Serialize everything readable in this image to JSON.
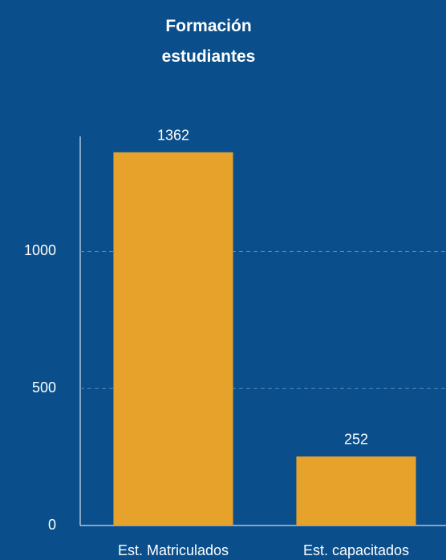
{
  "chart_data": {
    "type": "bar",
    "title": "Formación estudiantes",
    "categories": [
      "Est. Matriculados",
      "Est. capacitados"
    ],
    "values": [
      1362,
      252
    ],
    "color": "#e6a22a",
    "ylim": [
      0,
      1420
    ],
    "yticks": [
      0,
      500,
      1000
    ],
    "grid": true
  }
}
